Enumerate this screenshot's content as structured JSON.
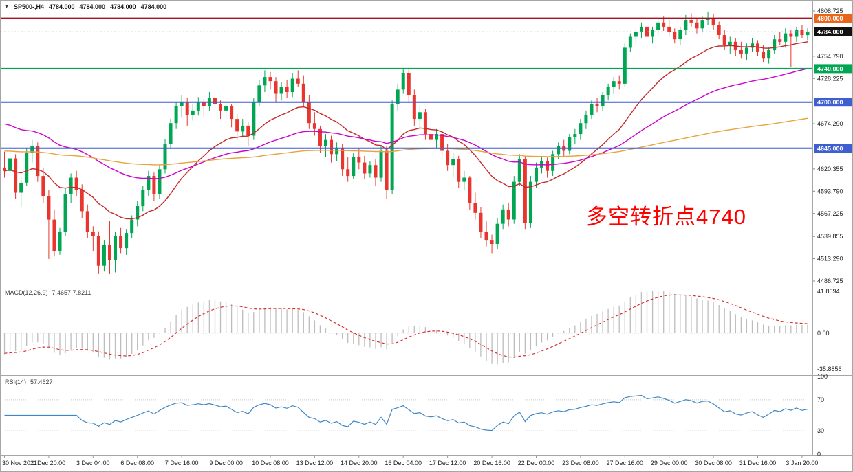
{
  "header": {
    "expand_icon": "▼",
    "symbol_period": "SP500-,H4",
    "open": "4784.000",
    "high": "4784.000",
    "low": "4784.000",
    "close": "4784.000"
  },
  "annotation": {
    "text": "多空转折点4740",
    "color": "#FF0000"
  },
  "chart_data": {
    "type": "candlestick",
    "symbol": "SP500-",
    "timeframe": "H4",
    "title": "SP500-,H4",
    "price_axis_ticks": [
      {
        "v": 4808.725,
        "label": "4808.725"
      },
      {
        "v": 4754.79,
        "label": "4754.790"
      },
      {
        "v": 4728.225,
        "label": "4728.225"
      },
      {
        "v": 4674.29,
        "label": "4674.290"
      },
      {
        "v": 4620.355,
        "label": "4620.355"
      },
      {
        "v": 4593.79,
        "label": "4593.790"
      },
      {
        "v": 4567.225,
        "label": "4567.225"
      },
      {
        "v": 4539.855,
        "label": "4539.855"
      },
      {
        "v": 4513.29,
        "label": "4513.290"
      },
      {
        "v": 4486.725,
        "label": "4486.725"
      }
    ],
    "badges": [
      {
        "v": 4800.0,
        "label": "4800.000",
        "color": "#E8651A"
      },
      {
        "v": 4784.0,
        "label": "4784.000",
        "color": "#111111"
      },
      {
        "v": 4740.0,
        "label": "4740.000",
        "color": "#00A651"
      },
      {
        "v": 4700.0,
        "label": "4700.000",
        "color": "#3D5FD0"
      },
      {
        "v": 4645.0,
        "label": "4645.000",
        "color": "#3D5FD0"
      }
    ],
    "hlines": [
      {
        "price": 4800.0,
        "color": "#A61120",
        "width": 2,
        "dash": null
      },
      {
        "price": 4784.0,
        "color": "#B0B0B0",
        "width": 1,
        "dash": "2,3"
      },
      {
        "price": 4740.0,
        "color": "#00A651",
        "width": 2,
        "dash": null
      },
      {
        "price": 4700.0,
        "color": "#3D5FD0",
        "width": 2,
        "dash": null
      },
      {
        "price": 4645.0,
        "color": "#3D5FD0",
        "width": 2,
        "dash": null
      }
    ],
    "x_labels": [
      "30 Nov 2021",
      "1 Dec 20:00",
      "3 Dec 04:00",
      "6 Dec 08:00",
      "7 Dec 16:00",
      "9 Dec 00:00",
      "10 Dec 08:00",
      "13 Dec 12:00",
      "14 Dec 20:00",
      "16 Dec 04:00",
      "17 Dec 12:00",
      "20 Dec 16:00",
      "22 Dec 00:00",
      "23 Dec 08:00",
      "27 Dec 16:00",
      "29 Dec 00:00",
      "30 Dec 08:00",
      "31 Dec 16:00",
      "3 Jan 20:00"
    ],
    "label_every": 8,
    "colors": {
      "up": "#00A651",
      "down": "#E8352E",
      "macd_hist": "#BDBDBD",
      "macd_signal": "#D63031",
      "rsi": "#3E86C6"
    },
    "overlays": [
      {
        "name": "ma-fast-red",
        "period": 21,
        "seed": 4618,
        "color": "#C62828"
      },
      {
        "name": "ma-mid-magenta",
        "period": 55,
        "seed": 4676,
        "color": "#CC00CC"
      },
      {
        "name": "ma-slow-orange",
        "period": 200,
        "seed": 4642,
        "color": "#E8A33D"
      }
    ],
    "macd": {
      "label": "MACD(12,26,9)",
      "value_text": "7.4657 7.8211",
      "fast": 12,
      "slow": 26,
      "signal": 9,
      "seed_fast": 4606,
      "seed_slow": 4630,
      "seed_signal": -20,
      "axis": [
        {
          "v": 41.8694,
          "label": "41.8694"
        },
        {
          "v": 0,
          "label": "0.00"
        },
        {
          "v": -35.8856,
          "label": "-35.8856"
        }
      ],
      "range": [
        -35.8856,
        41.8694
      ]
    },
    "rsi": {
      "label": "RSI(14)",
      "value_text": "57.4627",
      "period": 14,
      "axis": [
        {
          "v": 100,
          "label": "100"
        },
        {
          "v": 70,
          "label": "70"
        },
        {
          "v": 30,
          "label": "30"
        },
        {
          "v": 0,
          "label": "0"
        }
      ],
      "levels": [
        70,
        30
      ]
    },
    "candles": [
      [
        4622,
        4641,
        4610,
        4618
      ],
      [
        4618,
        4648,
        4615,
        4633
      ],
      [
        4633,
        4638,
        4585,
        4592
      ],
      [
        4592,
        4610,
        4575,
        4604
      ],
      [
        4604,
        4645,
        4600,
        4640
      ],
      [
        4640,
        4655,
        4628,
        4648
      ],
      [
        4648,
        4652,
        4605,
        4612
      ],
      [
        4612,
        4622,
        4580,
        4588
      ],
      [
        4588,
        4595,
        4513,
        4560
      ],
      [
        4560,
        4572,
        4516,
        4522
      ],
      [
        4522,
        4550,
        4518,
        4545
      ],
      [
        4545,
        4598,
        4540,
        4590
      ],
      [
        4590,
        4615,
        4580,
        4610
      ],
      [
        4610,
        4618,
        4588,
        4595
      ],
      [
        4595,
        4602,
        4562,
        4570
      ],
      [
        4570,
        4578,
        4538,
        4545
      ],
      [
        4545,
        4552,
        4522,
        4540
      ],
      [
        4540,
        4546,
        4495,
        4505
      ],
      [
        4505,
        4535,
        4498,
        4530
      ],
      [
        4530,
        4558,
        4495,
        4512
      ],
      [
        4512,
        4545,
        4497,
        4540
      ],
      [
        4540,
        4550,
        4520,
        4526
      ],
      [
        4526,
        4548,
        4518,
        4544
      ],
      [
        4544,
        4565,
        4538,
        4560
      ],
      [
        4560,
        4582,
        4552,
        4576
      ],
      [
        4576,
        4600,
        4570,
        4595
      ],
      [
        4595,
        4618,
        4588,
        4612
      ],
      [
        4612,
        4616,
        4582,
        4590
      ],
      [
        4590,
        4625,
        4585,
        4620
      ],
      [
        4620,
        4656,
        4615,
        4650
      ],
      [
        4650,
        4680,
        4645,
        4675
      ],
      [
        4675,
        4700,
        4668,
        4695
      ],
      [
        4695,
        4708,
        4682,
        4700
      ],
      [
        4700,
        4705,
        4672,
        4685
      ],
      [
        4685,
        4698,
        4678,
        4690
      ],
      [
        4690,
        4706,
        4684,
        4700
      ],
      [
        4700,
        4704,
        4682,
        4695
      ],
      [
        4695,
        4712,
        4690,
        4705
      ],
      [
        4705,
        4710,
        4688,
        4698
      ],
      [
        4698,
        4702,
        4680,
        4690
      ],
      [
        4690,
        4700,
        4678,
        4695
      ],
      [
        4695,
        4698,
        4670,
        4680
      ],
      [
        4680,
        4686,
        4655,
        4665
      ],
      [
        4665,
        4680,
        4658,
        4672
      ],
      [
        4672,
        4676,
        4648,
        4660
      ],
      [
        4660,
        4705,
        4655,
        4700
      ],
      [
        4700,
        4726,
        4695,
        4720
      ],
      [
        4720,
        4738,
        4712,
        4730
      ],
      [
        4730,
        4736,
        4715,
        4725
      ],
      [
        4725,
        4730,
        4700,
        4710
      ],
      [
        4710,
        4724,
        4702,
        4718
      ],
      [
        4718,
        4726,
        4705,
        4712
      ],
      [
        4712,
        4735,
        4706,
        4728
      ],
      [
        4728,
        4738,
        4718,
        4722
      ],
      [
        4722,
        4732,
        4695,
        4700
      ],
      [
        4700,
        4708,
        4668,
        4675
      ],
      [
        4675,
        4688,
        4660,
        4668
      ],
      [
        4668,
        4672,
        4640,
        4648
      ],
      [
        4648,
        4662,
        4635,
        4655
      ],
      [
        4655,
        4660,
        4628,
        4638
      ],
      [
        4638,
        4652,
        4630,
        4645
      ],
      [
        4645,
        4650,
        4612,
        4620
      ],
      [
        4620,
        4635,
        4605,
        4612
      ],
      [
        4612,
        4640,
        4608,
        4635
      ],
      [
        4635,
        4645,
        4620,
        4628
      ],
      [
        4628,
        4636,
        4608,
        4615
      ],
      [
        4615,
        4630,
        4610,
        4625
      ],
      [
        4625,
        4632,
        4600,
        4610
      ],
      [
        4610,
        4648,
        4605,
        4642
      ],
      [
        4642,
        4648,
        4585,
        4595
      ],
      [
        4595,
        4702,
        4590,
        4698
      ],
      [
        4698,
        4722,
        4690,
        4715
      ],
      [
        4715,
        4740,
        4710,
        4735
      ],
      [
        4735,
        4741,
        4700,
        4708
      ],
      [
        4708,
        4715,
        4672,
        4680
      ],
      [
        4680,
        4695,
        4668,
        4688
      ],
      [
        4688,
        4692,
        4655,
        4662
      ],
      [
        4662,
        4675,
        4648,
        4655
      ],
      [
        4655,
        4668,
        4645,
        4662
      ],
      [
        4662,
        4665,
        4635,
        4642
      ],
      [
        4642,
        4650,
        4618,
        4625
      ],
      [
        4625,
        4640,
        4610,
        4632
      ],
      [
        4632,
        4636,
        4598,
        4605
      ],
      [
        4605,
        4618,
        4595,
        4610
      ],
      [
        4610,
        4612,
        4572,
        4580
      ],
      [
        4580,
        4592,
        4560,
        4568
      ],
      [
        4568,
        4575,
        4538,
        4545
      ],
      [
        4545,
        4558,
        4528,
        4535
      ],
      [
        4535,
        4542,
        4520,
        4531
      ],
      [
        4531,
        4562,
        4525,
        4555
      ],
      [
        4555,
        4578,
        4548,
        4572
      ],
      [
        4572,
        4580,
        4552,
        4560
      ],
      [
        4560,
        4612,
        4555,
        4605
      ],
      [
        4605,
        4638,
        4600,
        4632
      ],
      [
        4632,
        4636,
        4548,
        4556
      ],
      [
        4556,
        4612,
        4550,
        4605
      ],
      [
        4605,
        4628,
        4598,
        4622
      ],
      [
        4622,
        4635,
        4615,
        4630
      ],
      [
        4630,
        4634,
        4610,
        4618
      ],
      [
        4618,
        4642,
        4612,
        4638
      ],
      [
        4638,
        4652,
        4632,
        4648
      ],
      [
        4648,
        4655,
        4635,
        4642
      ],
      [
        4642,
        4662,
        4638,
        4658
      ],
      [
        4658,
        4668,
        4650,
        4662
      ],
      [
        4662,
        4680,
        4655,
        4675
      ],
      [
        4675,
        4690,
        4668,
        4685
      ],
      [
        4685,
        4702,
        4680,
        4698
      ],
      [
        4698,
        4705,
        4688,
        4695
      ],
      [
        4695,
        4712,
        4690,
        4708
      ],
      [
        4708,
        4722,
        4702,
        4718
      ],
      [
        4718,
        4730,
        4710,
        4725
      ],
      [
        4725,
        4732,
        4715,
        4722
      ],
      [
        4722,
        4770,
        4718,
        4765
      ],
      [
        4765,
        4782,
        4760,
        4778
      ],
      [
        4778,
        4788,
        4770,
        4784
      ],
      [
        4784,
        4795,
        4776,
        4790
      ],
      [
        4790,
        4796,
        4772,
        4778
      ],
      [
        4778,
        4790,
        4770,
        4786
      ],
      [
        4786,
        4800,
        4780,
        4795
      ],
      [
        4795,
        4802,
        4785,
        4790
      ],
      [
        4790,
        4798,
        4778,
        4784
      ],
      [
        4784,
        4788,
        4770,
        4775
      ],
      [
        4775,
        4790,
        4768,
        4786
      ],
      [
        4786,
        4804,
        4780,
        4798
      ],
      [
        4798,
        4806,
        4790,
        4795
      ],
      [
        4795,
        4800,
        4782,
        4788
      ],
      [
        4788,
        4802,
        4784,
        4798
      ],
      [
        4798,
        4808,
        4792,
        4800
      ],
      [
        4800,
        4805,
        4786,
        4792
      ],
      [
        4792,
        4796,
        4775,
        4780
      ],
      [
        4780,
        4786,
        4762,
        4768
      ],
      [
        4768,
        4778,
        4758,
        4772
      ],
      [
        4772,
        4776,
        4755,
        4762
      ],
      [
        4762,
        4772,
        4752,
        4758
      ],
      [
        4758,
        4770,
        4750,
        4765
      ],
      [
        4765,
        4776,
        4760,
        4770
      ],
      [
        4770,
        4774,
        4755,
        4760
      ],
      [
        4760,
        4768,
        4748,
        4752
      ],
      [
        4752,
        4766,
        4746,
        4762
      ],
      [
        4762,
        4780,
        4758,
        4775
      ],
      [
        4775,
        4784,
        4768,
        4772
      ],
      [
        4772,
        4788,
        4765,
        4782
      ],
      [
        4782,
        4786,
        4742,
        4778
      ],
      [
        4778,
        4790,
        4772,
        4786
      ],
      [
        4786,
        4792,
        4776,
        4780
      ],
      [
        4780,
        4788,
        4774,
        4784
      ]
    ]
  }
}
